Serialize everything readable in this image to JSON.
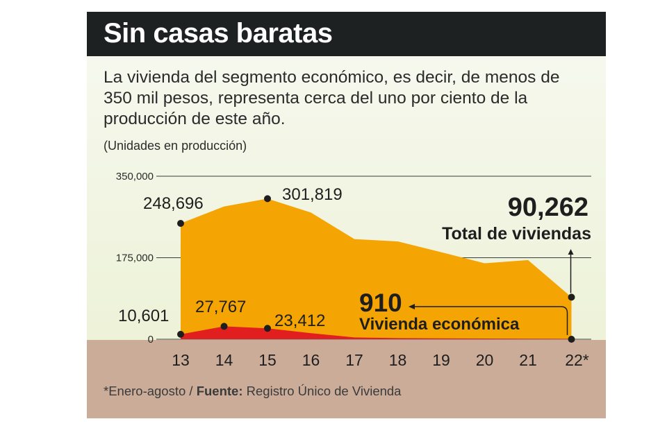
{
  "header": {
    "title": "Sin casas baratas",
    "description": "La vivienda del segmento económico, es decir, de menos de 350 mil pesos, representa cerca del uno por ciento de la producción de este año.",
    "units": "(Unidades en producción)"
  },
  "footer": {
    "note": "*Enero-agosto / ",
    "source_label": "Fuente:",
    "source": " Registro Único de Vivienda"
  },
  "colors": {
    "total": "#f5a503",
    "economica": "#e21f1f",
    "ground": "#cbac99",
    "title_bar": "#1e2122"
  },
  "chart_data": {
    "type": "area",
    "x": [
      "13",
      "14",
      "15",
      "16",
      "17",
      "18",
      "19",
      "20",
      "21",
      "22*"
    ],
    "ylim": [
      0,
      350000
    ],
    "yticks": [
      0,
      175000,
      350000
    ],
    "ytick_labels": [
      "0",
      "175,000",
      "350,000"
    ],
    "series": [
      {
        "name": "Total de viviendas",
        "values": [
          248696,
          285000,
          301819,
          272000,
          215000,
          210000,
          187000,
          163000,
          170000,
          90262
        ]
      },
      {
        "name": "Vivienda económica",
        "values": [
          10601,
          27767,
          23412,
          13000,
          4000,
          2500,
          1800,
          1500,
          1200,
          910
        ]
      }
    ],
    "data_labels": [
      {
        "series": 0,
        "index": 0,
        "text": "248,696"
      },
      {
        "series": 0,
        "index": 2,
        "text": "301,819"
      },
      {
        "series": 1,
        "index": 0,
        "text": "10,601"
      },
      {
        "series": 1,
        "index": 1,
        "text": "27,767"
      },
      {
        "series": 1,
        "index": 2,
        "text": "23,412"
      }
    ],
    "callouts": {
      "total_value": "90,262",
      "total_label": "Total de viviendas",
      "economica_value": "910",
      "economica_label": "Vivienda económica"
    },
    "grid": true,
    "legend": "none"
  }
}
